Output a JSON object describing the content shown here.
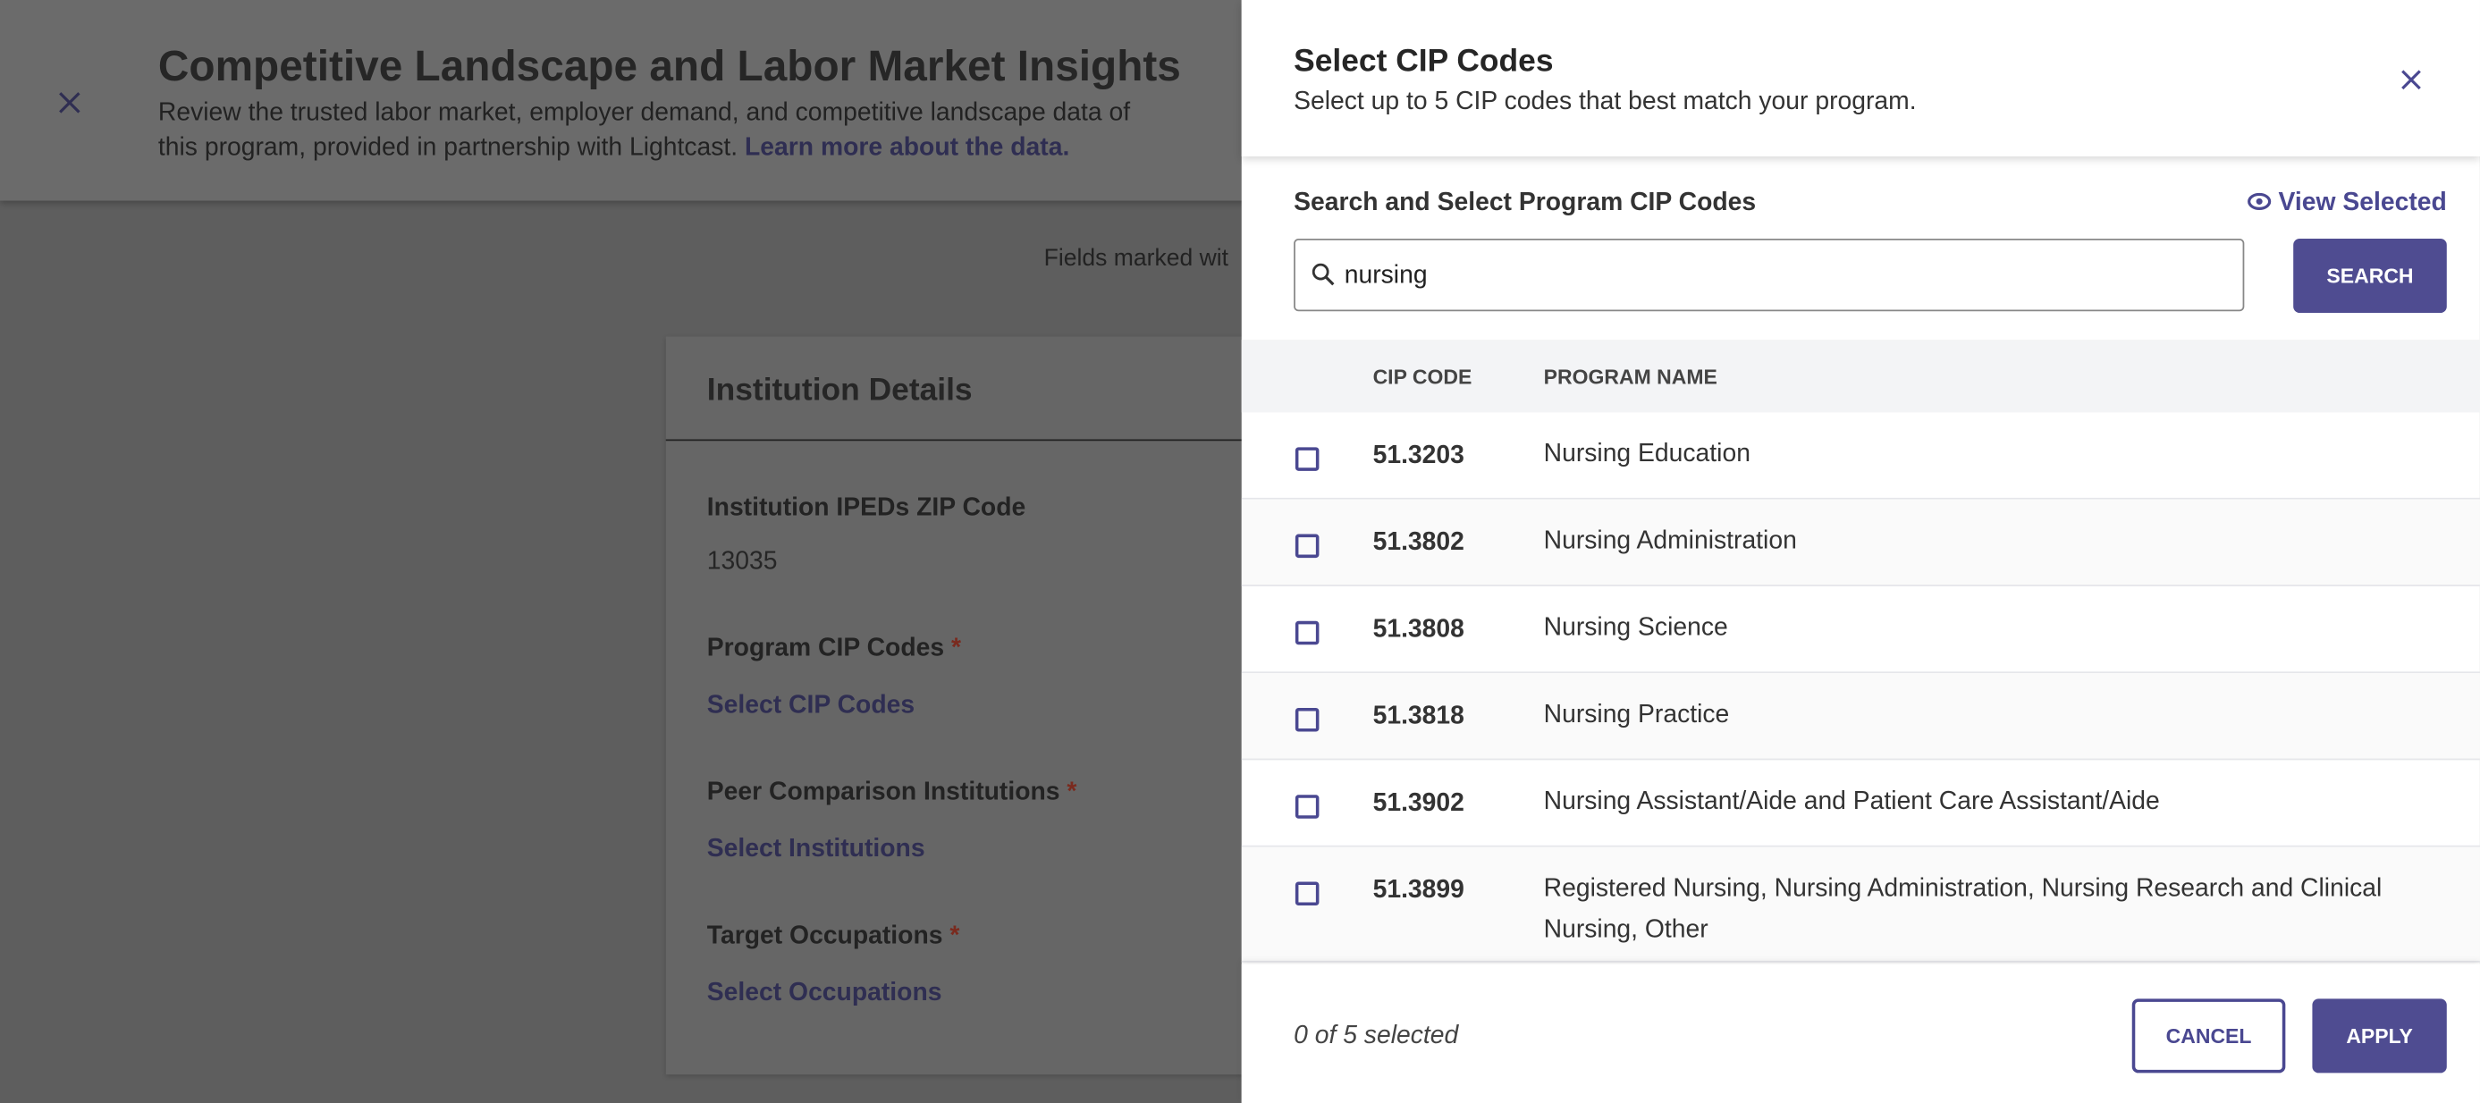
{
  "background": {
    "header": {
      "title": "Competitive Landscape and Labor Market Insights",
      "description_line1": "Review the trusted labor market, employer demand, and competitive landscape data of",
      "description_line2": "this program, provided in partnership with Lightcast.",
      "link": "Learn more about the data."
    },
    "fields_note": "Fields marked wit",
    "card": {
      "title": "Institution Details",
      "zip_label": "Institution IPEDs ZIP Code",
      "zip_value": "13035",
      "cip_label": "Program CIP Codes",
      "cip_link": "Select CIP Codes",
      "peer_label": "Peer Comparison Institutions",
      "peer_link": "Select Institutions",
      "occ_label": "Target Occupations",
      "occ_link": "Select Occupations",
      "required": "*"
    }
  },
  "modal": {
    "title": "Select CIP Codes",
    "subtitle": "Select up to 5 CIP codes that best match your program.",
    "search_label": "Search and Select Program CIP Codes",
    "view_selected": "View Selected",
    "search_value": "nursing",
    "search_button": "SEARCH",
    "table": {
      "headers": [
        "CIP CODE",
        "PROGRAM NAME"
      ],
      "rows": [
        [
          "51.3203",
          "Nursing Education"
        ],
        [
          "51.3802",
          "Nursing Administration"
        ],
        [
          "51.3808",
          "Nursing Science"
        ],
        [
          "51.3818",
          "Nursing Practice"
        ],
        [
          "51.3902",
          "Nursing Assistant/Aide and Patient Care Assistant/Aide"
        ],
        [
          "51.3899",
          "Registered Nursing, Nursing Administration, Nursing Research and Clinical Nursing, Other"
        ]
      ]
    },
    "selected_count": "0 of 5 selected",
    "cancel": "CANCEL",
    "apply": "APPLY"
  }
}
